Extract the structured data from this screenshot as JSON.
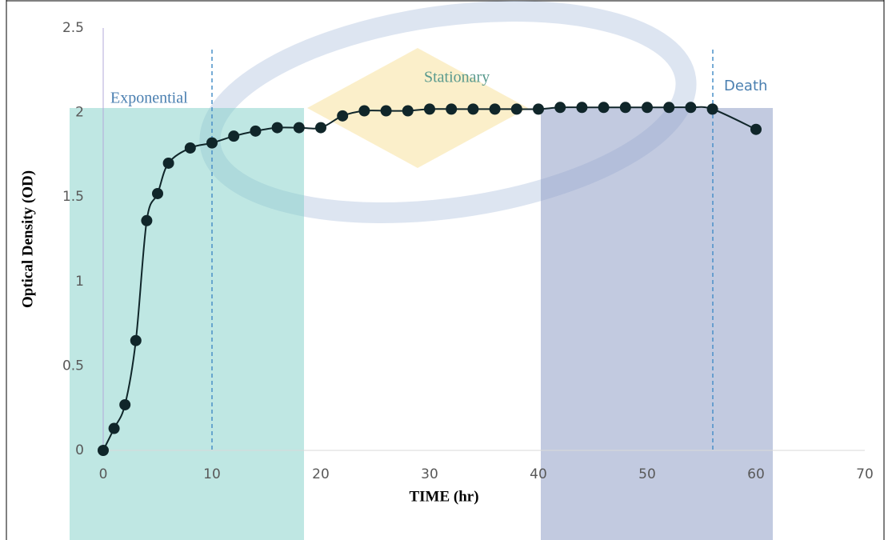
{
  "chart_data": {
    "type": "line",
    "x_label": "TIME (hr)",
    "y_label": "Optical Density (OD)",
    "annotations": [
      "Exponential",
      "Stationary",
      "Death"
    ],
    "x": [
      0,
      1,
      2,
      3,
      4,
      5,
      6,
      8,
      10,
      12,
      14,
      16,
      18,
      20,
      22,
      24,
      26,
      28,
      30,
      32,
      34,
      36,
      38,
      40,
      42,
      44,
      46,
      48,
      50,
      52,
      54,
      56,
      60
    ],
    "series": [
      {
        "color": "#10262a",
        "values": [
          0,
          0.13,
          0.27,
          0.65,
          1.36,
          1.52,
          1.7,
          1.79,
          1.82,
          1.86,
          1.89,
          1.91,
          1.91,
          1.91,
          1.98,
          2.01,
          2.01,
          2.01,
          2.02,
          2.02,
          2.02,
          2.02,
          2.02,
          2.02,
          2.03,
          2.03,
          2.03,
          2.03,
          2.03,
          2.03,
          2.03,
          2.02,
          1.9
        ]
      }
    ],
    "xlim": [
      0,
      70
    ],
    "xticks": [
      0,
      10,
      20,
      30,
      40,
      50,
      60,
      70
    ],
    "ylim": [
      0,
      2.5
    ],
    "yticks": [
      0,
      0.5,
      1,
      1.5,
      2,
      2.5
    ],
    "grid": false
  }
}
